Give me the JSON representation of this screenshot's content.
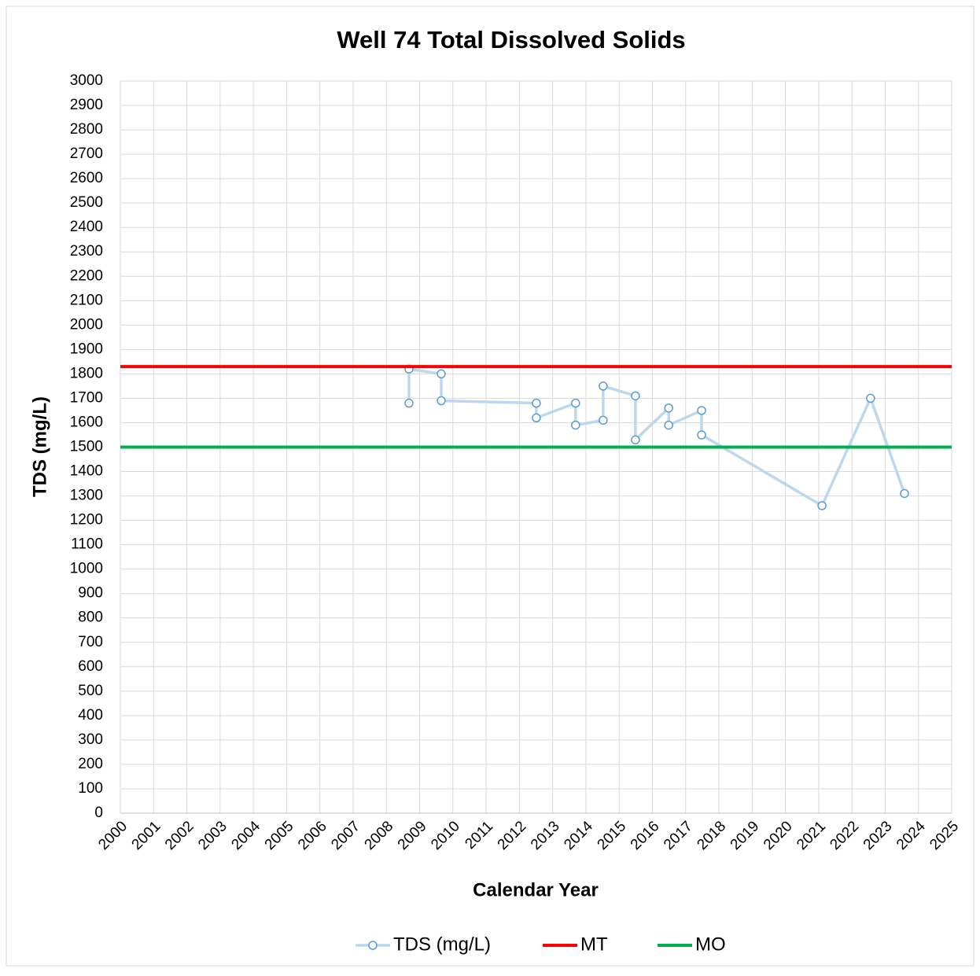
{
  "chart_data": {
    "type": "line",
    "title": "Well 74 Total Dissolved Solids",
    "x_label": "Calendar Year",
    "y_label": "TDS (mg/L)",
    "xlim": [
      2000,
      2025
    ],
    "xticks": [
      2000,
      2001,
      2002,
      2003,
      2004,
      2005,
      2006,
      2007,
      2008,
      2009,
      2010,
      2011,
      2012,
      2013,
      2014,
      2015,
      2016,
      2017,
      2018,
      2019,
      2020,
      2021,
      2022,
      2023,
      2024,
      2025
    ],
    "ylim": [
      0,
      3000
    ],
    "yticks": [
      0,
      100,
      200,
      300,
      400,
      500,
      600,
      700,
      800,
      900,
      1000,
      1100,
      1200,
      1300,
      1400,
      1500,
      1600,
      1700,
      1800,
      1900,
      2000,
      2100,
      2200,
      2300,
      2400,
      2500,
      2600,
      2700,
      2800,
      2900,
      3000
    ],
    "grid": true,
    "legend": "bottom",
    "series": [
      {
        "name": "TDS (mg/L)",
        "color": "#bdd7ee",
        "marker_color": "#5b9bd5",
        "markers": true,
        "x": [
          2008.68,
          2008.68,
          2009.65,
          2009.65,
          2012.51,
          2012.51,
          2013.69,
          2013.69,
          2014.52,
          2014.52,
          2015.49,
          2015.49,
          2016.49,
          2016.49,
          2017.48,
          2017.48,
          2021.1,
          2022.56,
          2023.58
        ],
        "values": [
          1680,
          1820,
          1800,
          1690,
          1680,
          1620,
          1680,
          1590,
          1610,
          1750,
          1710,
          1530,
          1660,
          1590,
          1650,
          1550,
          1260,
          1700,
          1310
        ]
      },
      {
        "name": "MT",
        "color": "#ff0000",
        "markers": false,
        "x": [
          2000,
          2025
        ],
        "values": [
          1830,
          1830
        ]
      },
      {
        "name": "MO",
        "color": "#00b050",
        "markers": false,
        "x": [
          2000,
          2025
        ],
        "values": [
          1500,
          1500
        ]
      }
    ]
  }
}
